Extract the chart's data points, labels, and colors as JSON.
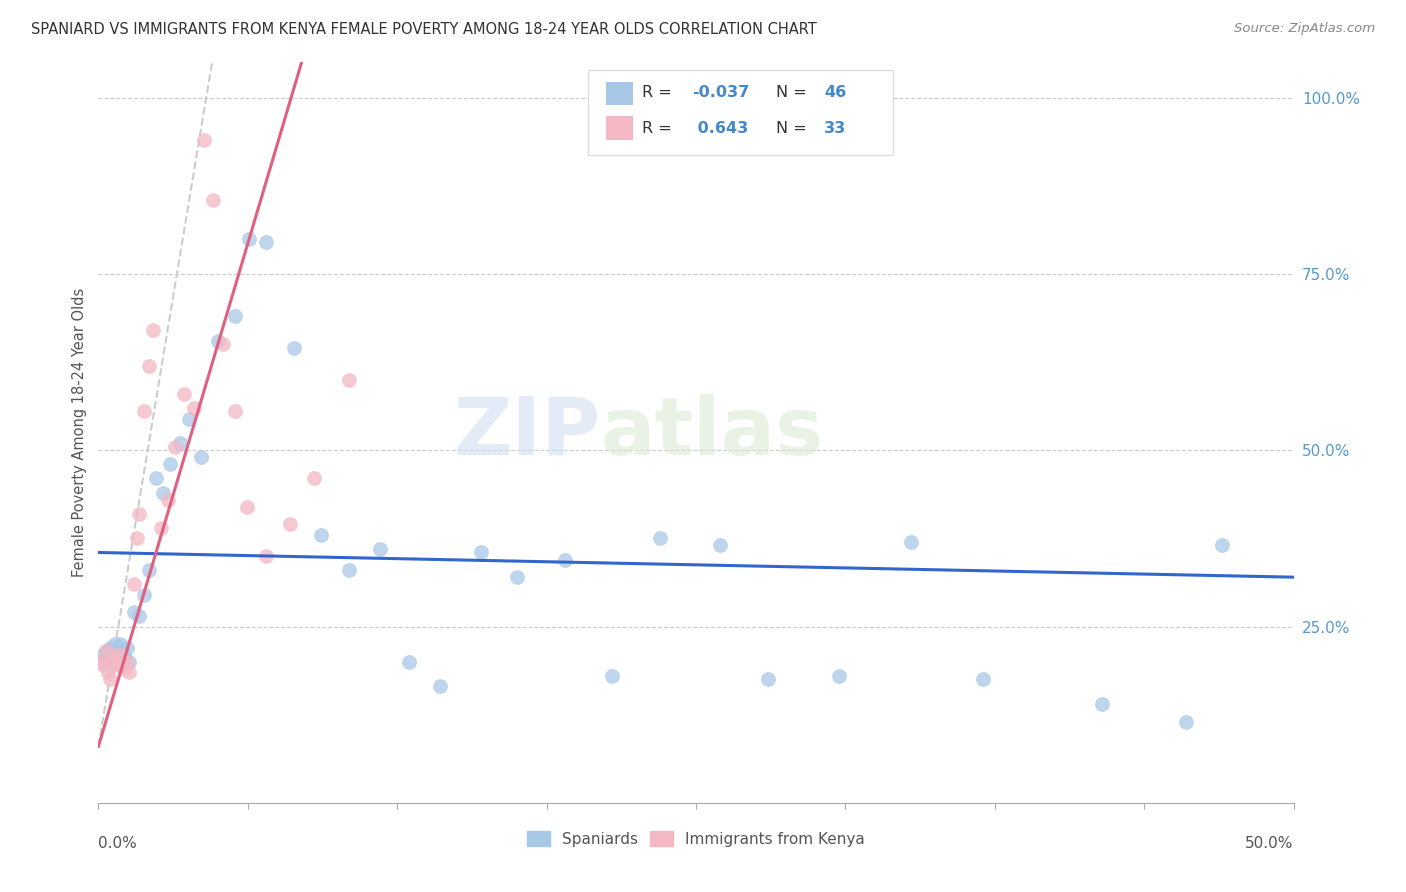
{
  "title": "SPANIARD VS IMMIGRANTS FROM KENYA FEMALE POVERTY AMONG 18-24 YEAR OLDS CORRELATION CHART",
  "source": "Source: ZipAtlas.com",
  "ylabel": "Female Poverty Among 18-24 Year Olds",
  "xlim": [
    0.0,
    0.5
  ],
  "ylim": [
    0.0,
    1.05
  ],
  "legend_r_blue": "-0.037",
  "legend_n_blue": "46",
  "legend_r_pink": "0.643",
  "legend_n_pink": "33",
  "blue_color": "#a8c8e8",
  "pink_color": "#f4b8c4",
  "blue_line_color": "#3366cc",
  "pink_line_color": "#e06080",
  "pink_line_dashed_color": "#cccccc",
  "watermark_zip": "ZIP",
  "watermark_atlas": "atlas",
  "spaniards_x": [
    0.001,
    0.002,
    0.003,
    0.004,
    0.005,
    0.006,
    0.007,
    0.008,
    0.009,
    0.01,
    0.011,
    0.012,
    0.013,
    0.015,
    0.017,
    0.019,
    0.021,
    0.024,
    0.027,
    0.03,
    0.034,
    0.038,
    0.043,
    0.05,
    0.057,
    0.063,
    0.07,
    0.082,
    0.093,
    0.105,
    0.118,
    0.13,
    0.143,
    0.16,
    0.175,
    0.195,
    0.215,
    0.235,
    0.26,
    0.28,
    0.31,
    0.34,
    0.37,
    0.42,
    0.455,
    0.47
  ],
  "spaniards_y": [
    0.2,
    0.21,
    0.215,
    0.205,
    0.22,
    0.195,
    0.225,
    0.21,
    0.225,
    0.215,
    0.205,
    0.22,
    0.2,
    0.27,
    0.265,
    0.295,
    0.33,
    0.46,
    0.44,
    0.48,
    0.51,
    0.545,
    0.49,
    0.655,
    0.69,
    0.8,
    0.795,
    0.645,
    0.38,
    0.33,
    0.36,
    0.2,
    0.165,
    0.355,
    0.32,
    0.345,
    0.18,
    0.375,
    0.365,
    0.175,
    0.18,
    0.37,
    0.175,
    0.14,
    0.115,
    0.365
  ],
  "kenya_x": [
    0.001,
    0.002,
    0.003,
    0.004,
    0.005,
    0.006,
    0.007,
    0.008,
    0.009,
    0.01,
    0.011,
    0.012,
    0.013,
    0.015,
    0.016,
    0.017,
    0.019,
    0.021,
    0.023,
    0.026,
    0.029,
    0.032,
    0.036,
    0.04,
    0.044,
    0.048,
    0.052,
    0.057,
    0.062,
    0.07,
    0.08,
    0.09,
    0.105
  ],
  "kenya_y": [
    0.2,
    0.195,
    0.215,
    0.185,
    0.175,
    0.21,
    0.2,
    0.195,
    0.21,
    0.195,
    0.19,
    0.2,
    0.185,
    0.31,
    0.375,
    0.41,
    0.555,
    0.62,
    0.67,
    0.39,
    0.43,
    0.505,
    0.58,
    0.56,
    0.94,
    0.855,
    0.65,
    0.555,
    0.42,
    0.35,
    0.395,
    0.46,
    0.6
  ],
  "blue_trendline_x": [
    0.0,
    0.5
  ],
  "blue_trendline_y": [
    0.355,
    0.32
  ],
  "pink_trendline_x": [
    0.0,
    0.085
  ],
  "pink_trendline_y": [
    0.08,
    1.05
  ]
}
